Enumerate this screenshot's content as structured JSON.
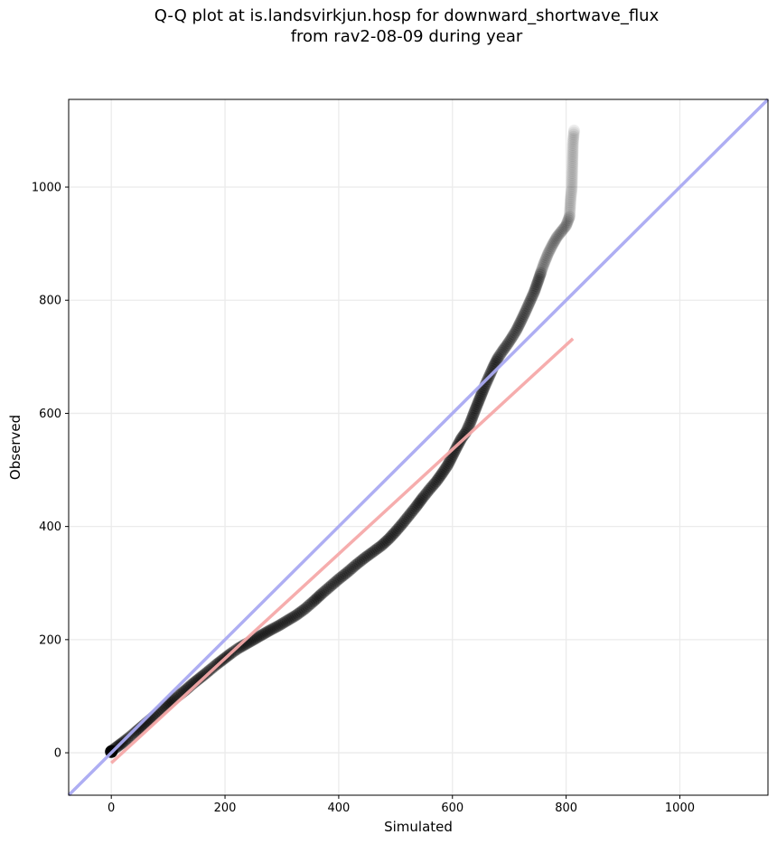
{
  "chart_data": {
    "type": "scatter",
    "title_line1": "Q-Q plot at is.landsvirkjun.hosp for downward_shortwave_flux",
    "title_line2": "from rav2-08-09 during year",
    "xlabel": "Simulated",
    "ylabel": "Observed",
    "xlim": [
      -75,
      1155
    ],
    "ylim": [
      -75,
      1155
    ],
    "xticks": [
      0,
      200,
      400,
      600,
      800,
      1000
    ],
    "yticks": [
      0,
      200,
      400,
      600,
      800,
      1000
    ],
    "grid": true,
    "identity_line": {
      "color": "#aaaaf2",
      "from": [
        -75,
        -75
      ],
      "to": [
        1155,
        1155
      ]
    },
    "fit_line": {
      "color": "#f5a9a9",
      "from": [
        0,
        -18
      ],
      "to": [
        812,
        732
      ]
    },
    "quantiles": [
      [
        0,
        2
      ],
      [
        1,
        3
      ],
      [
        2,
        4
      ],
      [
        3,
        5
      ],
      [
        5,
        7
      ],
      [
        8,
        9
      ],
      [
        12,
        12
      ],
      [
        16,
        15
      ],
      [
        20,
        18
      ],
      [
        25,
        22
      ],
      [
        30,
        26
      ],
      [
        36,
        31
      ],
      [
        42,
        36
      ],
      [
        49,
        42
      ],
      [
        56,
        48
      ],
      [
        63,
        54
      ],
      [
        70,
        60
      ],
      [
        78,
        67
      ],
      [
        86,
        74
      ],
      [
        95,
        81
      ],
      [
        104,
        89
      ],
      [
        113,
        97
      ],
      [
        122,
        104
      ],
      [
        132,
        112
      ],
      [
        142,
        121
      ],
      [
        152,
        129
      ],
      [
        162,
        137
      ],
      [
        173,
        146
      ],
      [
        185,
        156
      ],
      [
        198,
        166
      ],
      [
        211,
        176
      ],
      [
        224,
        185
      ],
      [
        238,
        193
      ],
      [
        252,
        201
      ],
      [
        266,
        209
      ],
      [
        280,
        217
      ],
      [
        295,
        225
      ],
      [
        310,
        234
      ],
      [
        325,
        243
      ],
      [
        340,
        254
      ],
      [
        355,
        267
      ],
      [
        370,
        281
      ],
      [
        385,
        294
      ],
      [
        400,
        307
      ],
      [
        415,
        319
      ],
      [
        430,
        332
      ],
      [
        445,
        344
      ],
      [
        460,
        355
      ],
      [
        475,
        366
      ],
      [
        488,
        378
      ],
      [
        500,
        391
      ],
      [
        512,
        405
      ],
      [
        524,
        420
      ],
      [
        536,
        435
      ],
      [
        548,
        451
      ],
      [
        560,
        466
      ],
      [
        572,
        480
      ],
      [
        582,
        494
      ],
      [
        592,
        509
      ],
      [
        600,
        525
      ],
      [
        608,
        541
      ],
      [
        616,
        556
      ],
      [
        624,
        567
      ],
      [
        632,
        585
      ],
      [
        640,
        606
      ],
      [
        648,
        626
      ],
      [
        656,
        646
      ],
      [
        664,
        664
      ],
      [
        672,
        682
      ],
      [
        680,
        698
      ],
      [
        688,
        710
      ],
      [
        696,
        721
      ],
      [
        704,
        733
      ],
      [
        712,
        746
      ],
      [
        720,
        762
      ],
      [
        728,
        779
      ],
      [
        736,
        797
      ],
      [
        744,
        815
      ],
      [
        752,
        838
      ],
      [
        760,
        862
      ],
      [
        768,
        882
      ],
      [
        776,
        898
      ],
      [
        784,
        912
      ],
      [
        792,
        922
      ],
      [
        800,
        932
      ],
      [
        806,
        948
      ],
      [
        808,
        980
      ],
      [
        810,
        998
      ],
      [
        812,
        1078
      ],
      [
        814,
        1100
      ]
    ]
  }
}
